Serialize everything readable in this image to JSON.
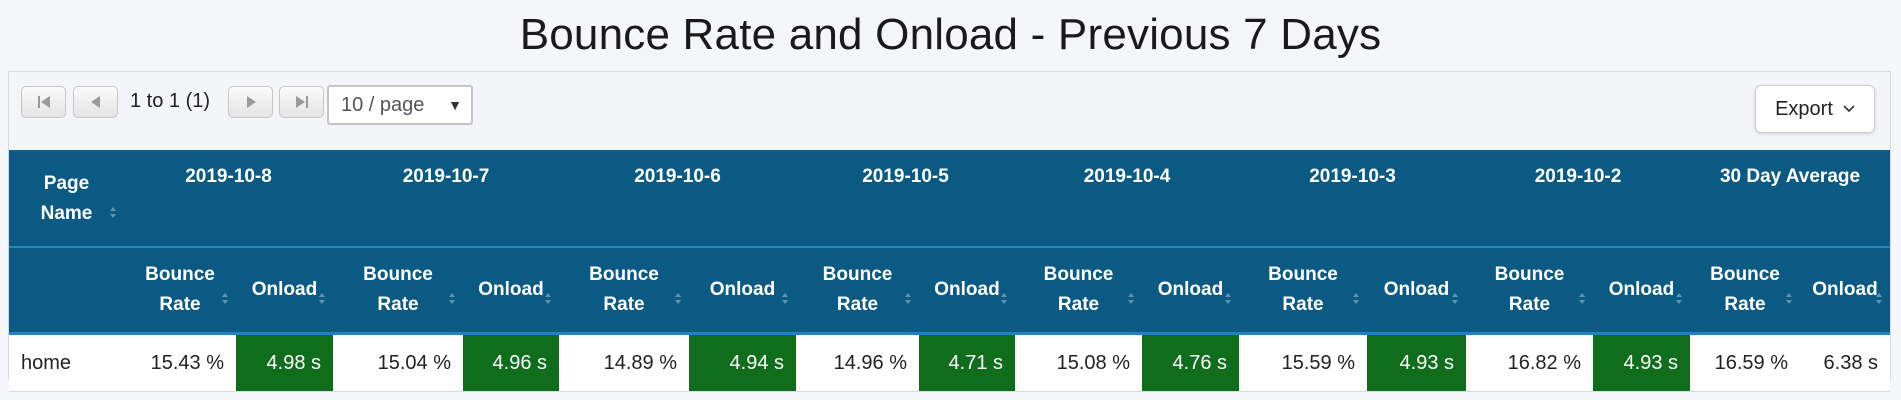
{
  "title": "Bounce Rate and Onload - Previous 7 Days",
  "pagination": {
    "info": "1 to 1 (1)",
    "page_size": "10 / page"
  },
  "export_label": "Export",
  "table": {
    "first_col_header": "Page Name",
    "dates": [
      "2019-10-8",
      "2019-10-7",
      "2019-10-6",
      "2019-10-5",
      "2019-10-4",
      "2019-10-3",
      "2019-10-2",
      "30 Day Average"
    ],
    "sub_headers": {
      "bounce": "Bounce Rate",
      "onload": "Onload"
    },
    "rows": [
      {
        "page": "home",
        "cells": [
          {
            "bounce": "15.43 %",
            "onload": "4.98 s"
          },
          {
            "bounce": "15.04 %",
            "onload": "4.96 s"
          },
          {
            "bounce": "14.89 %",
            "onload": "4.94 s"
          },
          {
            "bounce": "14.96 %",
            "onload": "4.71 s"
          },
          {
            "bounce": "15.08 %",
            "onload": "4.76 s"
          },
          {
            "bounce": "15.59 %",
            "onload": "4.93 s"
          },
          {
            "bounce": "16.82 %",
            "onload": "4.93 s"
          },
          {
            "bounce": "16.59 %",
            "onload": "6.38 s"
          }
        ]
      }
    ]
  },
  "colors": {
    "header_bg": "#0a5a83",
    "onload_highlight": "#0f6d1c"
  },
  "icons": [
    "first-page-icon",
    "prev-page-icon",
    "next-page-icon",
    "last-page-icon",
    "chevron-down-icon",
    "sort-icon"
  ]
}
